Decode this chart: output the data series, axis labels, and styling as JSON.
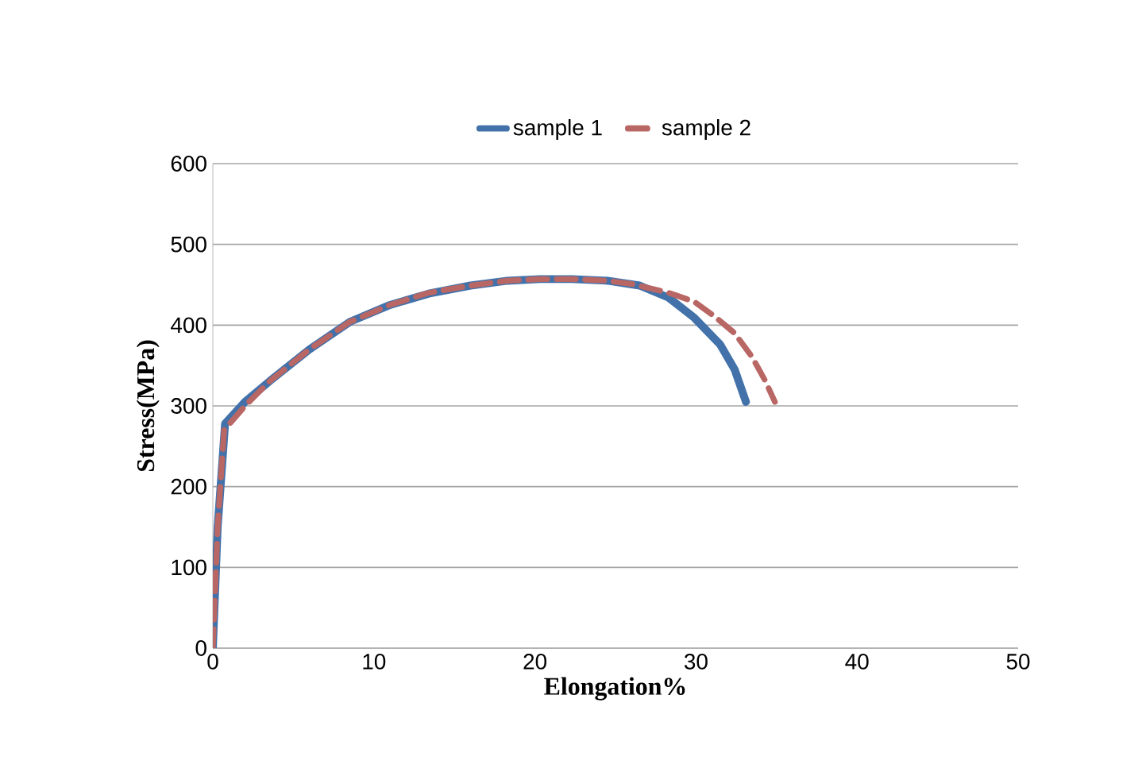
{
  "chart_data": {
    "type": "line",
    "xlabel": "Elongation%",
    "ylabel": "Stress(MPa)",
    "xlim": [
      0,
      50
    ],
    "xticks": [
      0,
      10,
      20,
      30,
      40,
      50
    ],
    "ylim": [
      0,
      600
    ],
    "yticks": [
      0,
      100,
      200,
      300,
      400,
      500,
      600
    ],
    "grid": "y",
    "legend": "top",
    "marker": "none",
    "series": [
      {
        "name": "sample 1",
        "color": "#4372aa",
        "line_style": "solid",
        "x": [
          0,
          0.3,
          0.76,
          2,
          3.55,
          6,
          8.5,
          11,
          13.4,
          16,
          18.3,
          20.3,
          22.3,
          24.5,
          26.5,
          28.3,
          29.9,
          31.5,
          32.4,
          33.1
        ],
        "values": [
          0,
          150,
          278,
          305,
          331,
          370,
          404,
          425,
          439,
          449,
          455,
          457,
          457,
          455,
          449,
          434,
          409,
          376,
          345,
          305
        ]
      },
      {
        "name": "sample 2",
        "color": "#b96765",
        "line_style": "dashed",
        "x": [
          0,
          0.3,
          0.7,
          2,
          3.5,
          6,
          8.5,
          11,
          13.4,
          16,
          18.3,
          20.3,
          22.3,
          24.5,
          26,
          28.3,
          29.9,
          31.2,
          32.4,
          33.5,
          34.3,
          34.9
        ],
        "values": [
          0,
          150,
          270,
          300,
          330,
          370,
          404,
          425,
          440,
          449,
          455,
          457,
          457,
          455,
          451,
          440,
          429,
          410,
          390,
          360,
          331,
          305
        ]
      }
    ]
  }
}
